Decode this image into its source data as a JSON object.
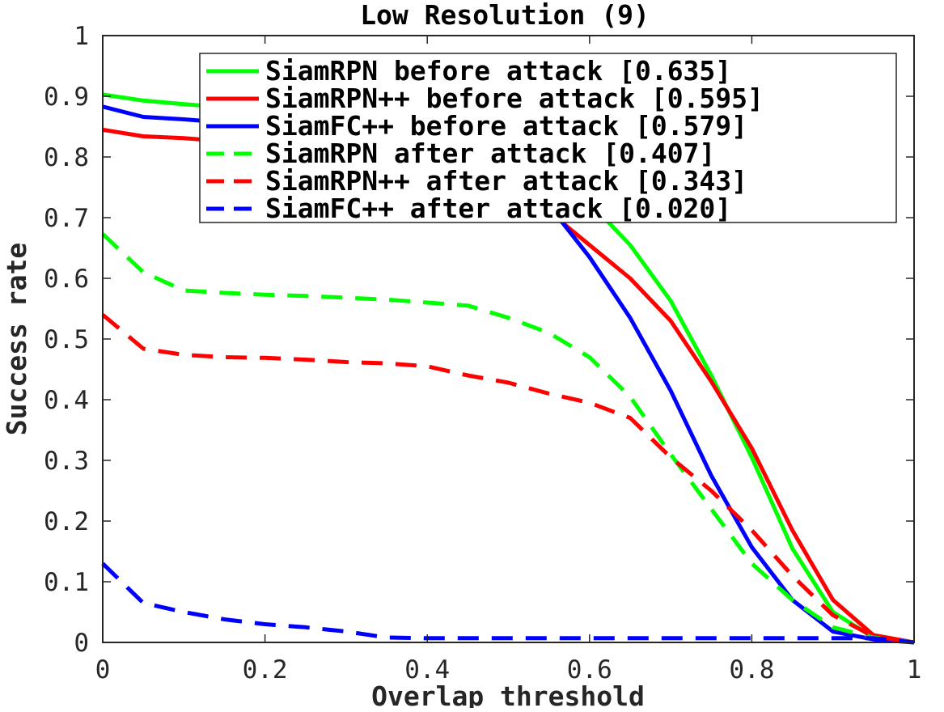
{
  "chart_data": {
    "type": "line",
    "title": "Low Resolution (9)",
    "xlabel": "Overlap threshold",
    "ylabel": "Success rate",
    "xlim": [
      0,
      1
    ],
    "ylim": [
      0,
      1
    ],
    "xticks": [
      "0",
      "0.2",
      "0.4",
      "0.6",
      "0.8",
      "1"
    ],
    "yticks": [
      "0",
      "0.1",
      "0.2",
      "0.3",
      "0.4",
      "0.5",
      "0.6",
      "0.7",
      "0.8",
      "0.9",
      "1"
    ],
    "grid": false,
    "legend_position": "top-right",
    "x": [
      0,
      0.05,
      0.1,
      0.15,
      0.2,
      0.25,
      0.3,
      0.35,
      0.4,
      0.45,
      0.5,
      0.55,
      0.6,
      0.65,
      0.7,
      0.75,
      0.8,
      0.85,
      0.9,
      0.95,
      1.0
    ],
    "series": [
      {
        "name": "SiamRPN before attack [0.635]",
        "color": "#00ff00",
        "style": "solid",
        "values": [
          0.903,
          0.893,
          0.887,
          0.882,
          0.878,
          0.872,
          0.866,
          0.858,
          0.848,
          0.835,
          0.815,
          0.78,
          0.725,
          0.655,
          0.563,
          0.44,
          0.305,
          0.155,
          0.05,
          0.008,
          0.0
        ]
      },
      {
        "name": "SiamRPN++ before attack [0.595]",
        "color": "#ff0000",
        "style": "solid",
        "values": [
          0.845,
          0.834,
          0.831,
          0.826,
          0.82,
          0.812,
          0.804,
          0.795,
          0.785,
          0.77,
          0.75,
          0.71,
          0.655,
          0.6,
          0.53,
          0.43,
          0.32,
          0.185,
          0.07,
          0.012,
          0.0
        ]
      },
      {
        "name": "SiamFC++ before attack [0.579]",
        "color": "#0000ff",
        "style": "solid",
        "values": [
          0.883,
          0.866,
          0.862,
          0.857,
          0.851,
          0.844,
          0.835,
          0.825,
          0.812,
          0.795,
          0.77,
          0.72,
          0.635,
          0.535,
          0.415,
          0.275,
          0.157,
          0.07,
          0.018,
          0.005,
          0.0
        ]
      },
      {
        "name": "SiamRPN after attack [0.407]",
        "color": "#00ff00",
        "style": "dashed",
        "values": [
          0.673,
          0.61,
          0.58,
          0.576,
          0.573,
          0.571,
          0.568,
          0.565,
          0.56,
          0.555,
          0.535,
          0.51,
          0.47,
          0.405,
          0.31,
          0.22,
          0.13,
          0.07,
          0.025,
          0.008,
          0.0
        ]
      },
      {
        "name": "SiamRPN++ after attack [0.343]",
        "color": "#ff0000",
        "style": "dashed",
        "values": [
          0.54,
          0.484,
          0.474,
          0.47,
          0.469,
          0.466,
          0.462,
          0.46,
          0.455,
          0.44,
          0.428,
          0.41,
          0.395,
          0.37,
          0.305,
          0.25,
          0.185,
          0.11,
          0.045,
          0.01,
          0.0
        ]
      },
      {
        "name": "SiamFC++ after attack [0.020]",
        "color": "#0000ff",
        "style": "dashed",
        "values": [
          0.13,
          0.065,
          0.05,
          0.038,
          0.03,
          0.025,
          0.018,
          0.008,
          0.007,
          0.007,
          0.007,
          0.007,
          0.007,
          0.007,
          0.007,
          0.007,
          0.007,
          0.007,
          0.007,
          0.007,
          0.0
        ]
      }
    ]
  }
}
